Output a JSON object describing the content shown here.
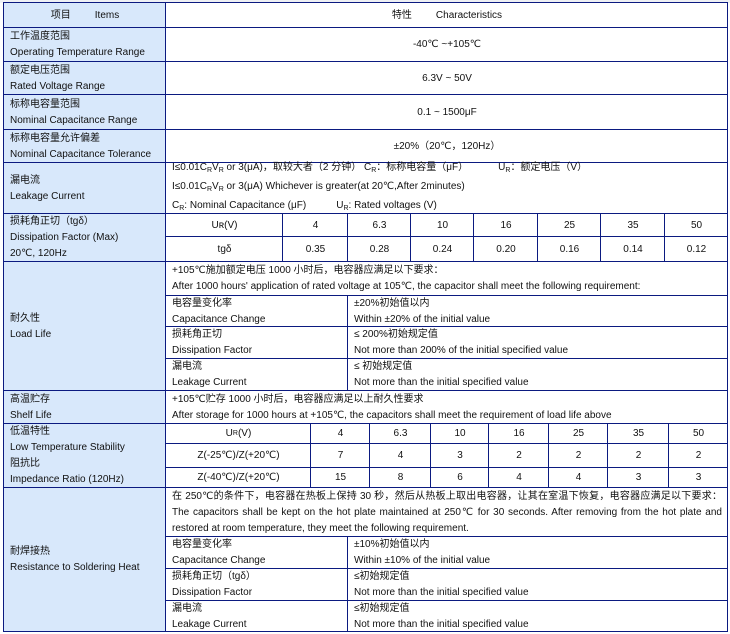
{
  "header": {
    "items_zh": "项目",
    "items_en": "Items",
    "char_zh": "特性",
    "char_en": "Characteristics"
  },
  "op_temp": {
    "zh": "工作温度范围",
    "en": "Operating Temperature Range",
    "value": "-40℃ ~+105℃"
  },
  "voltage": {
    "zh": "额定电压范围",
    "en": "Rated Voltage Range",
    "value": "6.3V ~ 50V"
  },
  "cap_range": {
    "zh": "标称电容量范围",
    "en": "Nominal Capacitance Range",
    "value": "0.1 ~ 1500μF"
  },
  "tolerance": {
    "zh": "标称电容量允许偏差",
    "en": "Nominal Capacitance Tolerance",
    "value": "±20%（20℃，120Hz）"
  },
  "leakage": {
    "zh": "漏电流",
    "en": "Leakage Current",
    "l1a": "I≤0.01C",
    "l1b": "V",
    "l1c": " or 3(μA)，取较大者（2 分钟）  C",
    "l1d": "：标称电容量（μF）",
    "l1e": "U",
    "l1f": "：额定电压（V）",
    "l2a": "I≤0.01C",
    "l2b": "V",
    "l2c": " or 3(μA) Whichever is greater(at 20℃,After 2minutes)",
    "l3a": "C",
    "l3b": ": Nominal Capacitance (μF)",
    "l3c": "U",
    "l3d": ": Rated voltages (V)",
    "sub": "R"
  },
  "dissipation": {
    "zh": "损耗角正切（tgδ）",
    "en": "Dissipation Factor (Max)",
    "cond": "20℃, 120Hz",
    "row1_label": "Uʀ(V)",
    "row2_label": "tgδ",
    "voltages": [
      "4",
      "6.3",
      "10",
      "16",
      "25",
      "35",
      "50"
    ],
    "tgd": [
      "0.35",
      "0.28",
      "0.24",
      "0.20",
      "0.16",
      "0.14",
      "0.12"
    ]
  },
  "load_life": {
    "zh": "耐久性",
    "en": "Load Life",
    "intro_zh": "+105℃施加额定电压 1000 小时后，电容器应满足以下要求：",
    "intro_en": "After 1000 hours' application of rated voltage at 105℃, the capacitor shall meet the following requirement:",
    "rows": [
      {
        "item_zh": "电容量变化率",
        "item_en": "Capacitance Change",
        "req_zh": "±20%初始值以内",
        "req_en": "Within ±20% of the initial value"
      },
      {
        "item_zh": "损耗角正切",
        "item_en": "Dissipation Factor",
        "req_zh": "≤ 200%初始规定值",
        "req_en": "Not more than 200% of the initial specified value"
      },
      {
        "item_zh": "漏电流",
        "item_en": "Leakage Current",
        "req_zh": "≤ 初始规定值",
        "req_en": "Not more than the initial specified value"
      }
    ]
  },
  "shelf_life": {
    "zh": "高温贮存",
    "en": "Shelf Life",
    "zh_text": "+105℃贮存 1000 小时后，电容器应满足以上耐久性要求",
    "en_text": "After storage for 1000 hours at +105℃, the capacitors shall meet the requirement of load life above"
  },
  "low_temp": {
    "zh1": "低温特性",
    "en1": "Low Temperature Stability",
    "zh2": "阻抗比",
    "en2": "Impedance Ratio (120Hz)",
    "row_ur": "U",
    "row_ur_b": "(V)",
    "row_z25": "Z(-25℃)/Z(+20℃)",
    "row_z40": "Z(-40℃)/Z(+20℃)",
    "voltages": [
      "4",
      "6.3",
      "10",
      "16",
      "25",
      "35",
      "50"
    ],
    "z25": [
      "7",
      "4",
      "3",
      "2",
      "2",
      "2",
      "2"
    ],
    "z40": [
      "15",
      "8",
      "6",
      "4",
      "4",
      "3",
      "3"
    ]
  },
  "soldering": {
    "zh": "耐焊接热",
    "en": "Resistance to Soldering Heat",
    "intro": "在 250℃的条件下，电容器在热板上保持 30 秒，然后从热板上取出电容器，让其在室温下恢复，电容器应满足以下要求：The capacitors shall be kept on the hot plate maintained at 250℃ for 30 seconds. After removing from the hot plate and restored at room temperature, they meet the following requirement.",
    "rows": [
      {
        "item_zh": "电容量变化率",
        "item_en": "Capacitance Change",
        "req_zh": "±10%初始值以内",
        "req_en": "Within ±10% of the initial value"
      },
      {
        "item_zh": "损耗角正切（tgδ）",
        "item_en": "Dissipation Factor",
        "req_zh": "≤初始规定值",
        "req_en": "Not more than the initial specified value"
      },
      {
        "item_zh": "漏电流",
        "item_en": "Leakage Current",
        "req_zh": "≤初始规定值",
        "req_en": "Not more than the initial specified value"
      }
    ]
  },
  "colors": {
    "border": "#0b1a80",
    "label_bg": "#d8e8fb"
  }
}
